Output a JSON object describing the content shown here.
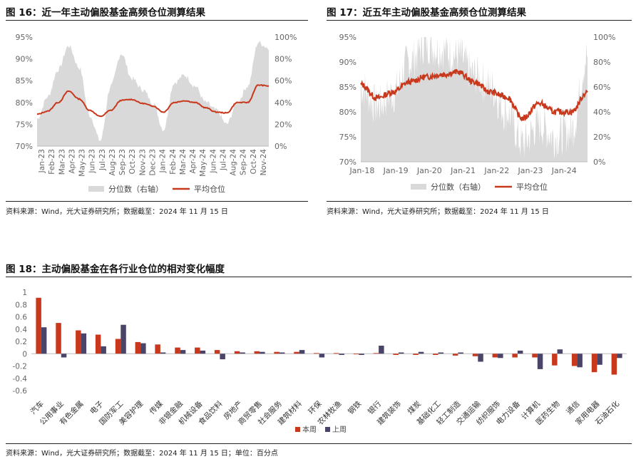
{
  "figures": {
    "fig16": {
      "title": "图 16：近一年主动偏股基金高频仓位测算结果",
      "source": "资料来源：Wind，光大证券研究所；数据截至：2024 年 11 月 15 日"
    },
    "fig17": {
      "title": "图 17：近五年主动偏股基金高频仓位测算结果",
      "source": "资料来源：Wind，光大证券研究所；数据截至：2024 年 11 月 15 日"
    },
    "fig18": {
      "title": "图 18：主动偏股基金在各行业仓位的相对变化幅度",
      "source": "资料来源：Wind，光大证券研究所；数据截至：2024 年 11 月 15 日；单位：百分点"
    }
  },
  "colors": {
    "line": "#c8381c",
    "area": "#d9d9d9",
    "bar_this_week": "#c8381c",
    "bar_last_week": "#4a4468",
    "axis_text": "#666666"
  },
  "chart_data": [
    {
      "id": "fig16",
      "type": "line",
      "x_dates": [
        "Jan-23",
        "Feb-23",
        "Mar-23",
        "Apr-23",
        "May-23",
        "Jun-23",
        "Jul-23",
        "Aug-23",
        "Sep-23",
        "Oct-23",
        "Nov-23",
        "Dec-23",
        "Jan-24",
        "Feb-24",
        "Mar-24",
        "Apr-24",
        "May-24",
        "Jun-24",
        "Jul-24",
        "Aug-24",
        "Sep-24",
        "Oct-24",
        "Nov-24"
      ],
      "x_ticks": [
        "Jan-23",
        "Feb-23",
        "Mar-23",
        "Apr-23",
        "May-23",
        "Jun-23",
        "Jul-23",
        "Aug-23",
        "Sep-23",
        "Oct-23",
        "Nov-23",
        "Dec-23",
        "Jan-24",
        "Feb-24",
        "Mar-24",
        "Apr-24",
        "May-24",
        "Jun-24",
        "Jul-24",
        "Aug-24",
        "Sep-24",
        "Oct-24",
        "Nov-24"
      ],
      "left_ticks": [
        "70%",
        "75%",
        "80%",
        "85%",
        "90%",
        "95%"
      ],
      "right_ticks": [
        "0%",
        "20%",
        "40%",
        "60%",
        "80%",
        "100%"
      ],
      "ylim_left": [
        0.7,
        0.95
      ],
      "ylim_right": [
        0,
        1.0
      ],
      "series": [
        {
          "name": "分位数（右轴）",
          "axis": "right",
          "kind": "area",
          "values": [
            0.25,
            0.45,
            0.7,
            0.92,
            0.72,
            0.28,
            0.05,
            0.55,
            0.85,
            0.62,
            0.52,
            0.4,
            0.15,
            0.58,
            0.65,
            0.55,
            0.4,
            0.33,
            0.2,
            0.4,
            0.55,
            0.95,
            0.9
          ]
        },
        {
          "name": "平均仓位",
          "axis": "left",
          "kind": "line",
          "values": [
            0.773,
            0.78,
            0.8,
            0.826,
            0.808,
            0.782,
            0.768,
            0.782,
            0.805,
            0.807,
            0.798,
            0.792,
            0.778,
            0.8,
            0.804,
            0.8,
            0.788,
            0.778,
            0.776,
            0.8,
            0.8,
            0.84,
            0.838
          ]
        }
      ],
      "legend": "bottom"
    },
    {
      "id": "fig17",
      "type": "line",
      "x_dates": [
        "Jan-18",
        "Jul-18",
        "Jan-19",
        "Jul-19",
        "Jan-20",
        "Jul-20",
        "Jan-21",
        "Jul-21",
        "Jan-22",
        "Jul-22",
        "Jan-23",
        "Jul-23",
        "Jan-24",
        "Jul-24",
        "Nov-24"
      ],
      "x_ticks": [
        "Jan-18",
        "Jan-19",
        "Jan-20",
        "Jan-21",
        "Jan-22",
        "Jan-23",
        "Jan-24"
      ],
      "left_ticks": [
        "70%",
        "75%",
        "80%",
        "85%",
        "90%",
        "95%"
      ],
      "right_ticks": [
        "0%",
        "20%",
        "40%",
        "60%",
        "80%",
        "100%"
      ],
      "ylim_left": [
        0.7,
        0.95
      ],
      "ylim_right": [
        0,
        1.0
      ],
      "series": [
        {
          "name": "分位数（右轴）",
          "axis": "right",
          "kind": "area",
          "values": [
            0.6,
            0.45,
            0.55,
            0.8,
            0.95,
            0.9,
            0.85,
            0.7,
            0.6,
            0.4,
            0.15,
            0.3,
            0.2,
            0.25,
            0.85
          ]
        },
        {
          "name": "平均仓位",
          "axis": "left",
          "kind": "line",
          "values": [
            0.855,
            0.828,
            0.84,
            0.86,
            0.87,
            0.875,
            0.88,
            0.86,
            0.84,
            0.83,
            0.787,
            0.817,
            0.8,
            0.8,
            0.84
          ]
        }
      ],
      "legend": "bottom"
    },
    {
      "id": "fig18",
      "type": "bar",
      "categories": [
        "汽车",
        "公用事业",
        "有色金属",
        "电子",
        "国防军工",
        "美容护理",
        "传媒",
        "非银金融",
        "机械设备",
        "食品饮料",
        "房地产",
        "商贸零售",
        "社会服务",
        "建筑材料",
        "环保",
        "农林牧渔",
        "钢铁",
        "银行",
        "建筑装饰",
        "煤炭",
        "基础化工",
        "轻工制造",
        "交通运输",
        "纺织服饰",
        "电力设备",
        "计算机",
        "医药生物",
        "通信",
        "家用电器",
        "石油石化"
      ],
      "y_ticks": [
        "1",
        "0.8",
        "0.6",
        "0.4",
        "0.2",
        "0",
        "-0.2",
        "-0.4",
        "-0.6"
      ],
      "ylim": [
        -0.6,
        1.0
      ],
      "series": [
        {
          "name": "本周",
          "values": [
            0.91,
            0.5,
            0.38,
            0.31,
            0.24,
            0.19,
            0.15,
            0.1,
            0.1,
            0.06,
            0.04,
            0.04,
            0.03,
            0.03,
            0.01,
            0.01,
            0.0,
            0.01,
            -0.02,
            -0.02,
            -0.02,
            -0.03,
            -0.04,
            -0.06,
            -0.06,
            -0.06,
            -0.19,
            -0.2,
            -0.3,
            -0.34
          ]
        },
        {
          "name": "上周",
          "values": [
            0.43,
            -0.06,
            0.33,
            0.12,
            0.47,
            0.17,
            0.02,
            0.06,
            0.05,
            -0.09,
            0.02,
            0.03,
            0.02,
            0.06,
            -0.06,
            -0.02,
            -0.02,
            0.13,
            0.02,
            0.03,
            0.02,
            0.02,
            -0.13,
            -0.07,
            0.05,
            -0.25,
            0.07,
            -0.22,
            -0.18,
            -0.07
          ]
        }
      ],
      "legend": "bottom"
    }
  ]
}
